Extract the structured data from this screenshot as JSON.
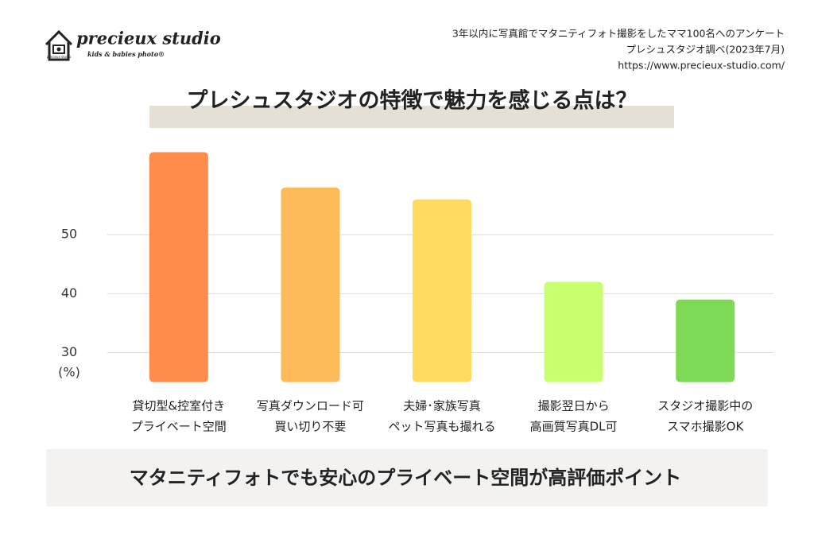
{
  "header": {
    "logo": "precieux studio",
    "logo_small": "precieux studio",
    "logo_sub": "kids & babies photo®",
    "notes": [
      "3年以内に写真館でマタニティフォト撮影をしたママ100名へのアンケート",
      "プレシュスタジオ調べ(2023年7月)",
      "https://www.precieux-studio.com/"
    ]
  },
  "chart_data": {
    "type": "bar",
    "title": "プレシュスタジオの特徴で魅力を感じる点は？",
    "y_label": "(%)",
    "categories": [
      [
        "貸切型&控室付き",
        "プライベート空間"
      ],
      [
        "写真ダウンロード可",
        "買い切り不要"
      ],
      [
        "夫婦･家族写真",
        "ペット写真も撮れる"
      ],
      [
        "撮影翌日から",
        "高画質写真DL可"
      ],
      [
        "スタジオ撮影中の",
        "スマホ撮影OK"
      ]
    ],
    "values": [
      64,
      58,
      56,
      42,
      39
    ],
    "colors": [
      "#ff8c4a",
      "#fdbb5a",
      "#fedb5c",
      "#c8ff6e",
      "#7ed957"
    ],
    "ylim": [
      25,
      65
    ],
    "yticks": [
      30,
      40,
      50
    ],
    "grid": true
  },
  "footer": "マタニティフォトでも安心のプライベート空間が高評価ポイント"
}
